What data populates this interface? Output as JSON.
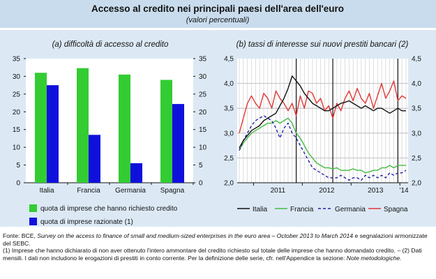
{
  "header": {
    "title": "Accesso al credito nei principali paesi dell'area dell'euro",
    "subtitle": "(valori percentuali)"
  },
  "colors": {
    "header_bg": "#c9dced",
    "panel_bg": "#dce9f5",
    "bar_green": "#33cc33",
    "bar_blue": "#1010dd",
    "italia": "#111111",
    "francia": "#44bb44",
    "germania": "#2222aa",
    "spagna": "#e03838"
  },
  "chart_data": [
    {
      "type": "bar",
      "title": "(a) difficoltà di accesso al credito",
      "categories": [
        "Italia",
        "Francia",
        "Germania",
        "Spagna"
      ],
      "series": [
        {
          "name": "quota di imprese che hanno richiesto credito",
          "values": [
            31,
            32.3,
            30.5,
            29
          ]
        },
        {
          "name": "quota di imprese razionate (1)",
          "values": [
            27.5,
            13.5,
            5.5,
            22.2
          ]
        }
      ],
      "ylim": [
        0,
        35
      ],
      "yticks": [
        "0",
        "5",
        "10",
        "15",
        "20",
        "25",
        "30",
        "35"
      ],
      "dual_axis": true,
      "grid": false,
      "legend": "bottom"
    },
    {
      "type": "line",
      "title": "(b) tassi di interesse sui nuovi prestiti bancari (2)",
      "x": [
        "2010-09",
        "2010-10",
        "2010-11",
        "2010-12",
        "2011-01",
        "2011-02",
        "2011-03",
        "2011-04",
        "2011-05",
        "2011-06",
        "2011-07",
        "2011-08",
        "2011-09",
        "2011-10",
        "2011-11",
        "2011-12",
        "2012-01",
        "2012-02",
        "2012-03",
        "2012-04",
        "2012-05",
        "2012-06",
        "2012-07",
        "2012-08",
        "2012-09",
        "2012-10",
        "2012-11",
        "2012-12",
        "2013-01",
        "2013-02",
        "2013-03",
        "2013-04",
        "2013-05",
        "2013-06",
        "2013-07",
        "2013-08",
        "2013-09",
        "2013-10",
        "2013-11",
        "2013-12",
        "2014-01",
        "2014-02"
      ],
      "xticklabels": [
        "2011",
        "2012",
        "2013",
        "'14"
      ],
      "ylim": [
        2.0,
        4.5
      ],
      "yticks": [
        "2,0",
        "2,5",
        "3,0",
        "3,5",
        "4,0",
        "4,5"
      ],
      "dual_axis": true,
      "vlines": [
        "2011-11",
        "2012-08",
        "2013-12"
      ],
      "series": [
        {
          "name": "Italia",
          "style": "solid",
          "values": [
            2.7,
            2.85,
            2.95,
            3.05,
            3.1,
            3.15,
            3.25,
            3.3,
            3.35,
            3.4,
            3.55,
            3.7,
            3.9,
            4.15,
            4.05,
            3.95,
            3.8,
            3.7,
            3.6,
            3.55,
            3.5,
            3.45,
            3.45,
            3.5,
            3.55,
            3.6,
            3.62,
            3.65,
            3.6,
            3.55,
            3.5,
            3.55,
            3.5,
            3.45,
            3.5,
            3.5,
            3.45,
            3.4,
            3.45,
            3.5,
            3.45,
            3.45
          ]
        },
        {
          "name": "Francia",
          "style": "solid",
          "values": [
            2.65,
            2.8,
            2.9,
            3.0,
            3.05,
            3.1,
            3.15,
            3.2,
            3.2,
            3.25,
            3.2,
            3.25,
            3.3,
            3.2,
            3.0,
            2.9,
            2.75,
            2.6,
            2.5,
            2.4,
            2.35,
            2.3,
            2.3,
            2.28,
            2.3,
            2.25,
            2.25,
            2.25,
            2.28,
            2.25,
            2.25,
            2.2,
            2.22,
            2.25,
            2.25,
            2.3,
            2.3,
            2.35,
            2.3,
            2.35,
            2.35,
            2.35
          ]
        },
        {
          "name": "Germania",
          "style": "dashed",
          "values": [
            2.65,
            2.85,
            3.0,
            3.15,
            3.25,
            3.3,
            3.35,
            3.3,
            3.25,
            3.1,
            2.9,
            3.1,
            3.2,
            3.0,
            2.9,
            2.75,
            2.6,
            2.45,
            2.3,
            2.25,
            2.2,
            2.15,
            2.1,
            2.1,
            2.1,
            2.15,
            2.1,
            2.05,
            2.1,
            2.1,
            2.05,
            2.15,
            2.1,
            2.15,
            2.1,
            2.15,
            2.1,
            2.2,
            2.15,
            2.2,
            2.2,
            2.25
          ]
        },
        {
          "name": "Spagna",
          "style": "solid",
          "values": [
            3.0,
            3.3,
            3.6,
            3.75,
            3.6,
            3.5,
            3.8,
            3.7,
            3.5,
            3.85,
            3.7,
            3.6,
            3.45,
            3.6,
            3.35,
            3.75,
            3.5,
            3.85,
            3.8,
            3.6,
            3.7,
            3.45,
            3.55,
            3.3,
            3.6,
            3.45,
            3.7,
            3.85,
            3.65,
            3.9,
            3.7,
            3.6,
            3.8,
            3.5,
            3.75,
            4.0,
            3.7,
            3.85,
            4.05,
            3.65,
            3.75,
            3.7
          ]
        }
      ],
      "grid": true,
      "legend": "bottom"
    }
  ],
  "notes": {
    "source_label": "Fonte:",
    "source_pre": "BCE,",
    "source_italic": "Survey on the access to finance of small and medium-sized enterprises in the euro area – October 2013 to March 2014",
    "source_post": "e segnalazioni armonizzate del SEBC.",
    "note1": "(1) Imprese che hanno dichiarato di non aver ottenuto l'intero ammontare del credito richiesto sul totale delle imprese che hanno domandato credito.",
    "note2": "– (2) Dati mensili. I dati non includono le erogazioni di prestiti in conto corrente. Per la definizione delle serie, cfr. nell'Appendice la sezione:",
    "note2_italic": "Note metodologiche."
  }
}
